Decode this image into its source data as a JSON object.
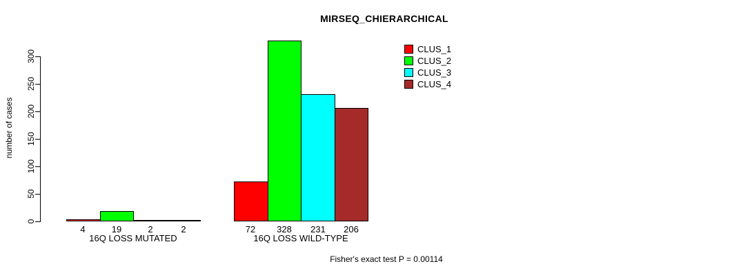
{
  "title": "MIRSEQ_CHIERARCHICAL",
  "y_axis": {
    "label": "number of cases"
  },
  "legend": {
    "items": [
      {
        "label": "CLUS_1",
        "color": "#ff0000"
      },
      {
        "label": "CLUS_2",
        "color": "#00ff00"
      },
      {
        "label": "CLUS_3",
        "color": "#00ffff"
      },
      {
        "label": "CLUS_4",
        "color": "#a52a2a"
      }
    ]
  },
  "footer": "Fisher's exact test P = 0.00114",
  "chart_data": {
    "type": "bar",
    "title": "MIRSEQ_CHIERARCHICAL",
    "xlabel": "",
    "ylabel": "number of cases",
    "ylim": [
      0,
      330
    ],
    "yticks": [
      0,
      50,
      100,
      150,
      200,
      250,
      300
    ],
    "categories": [
      "16Q LOSS MUTATED",
      "16Q LOSS WILD-TYPE"
    ],
    "series": [
      {
        "name": "CLUS_1",
        "color": "#ff0000",
        "values": [
          4,
          72
        ]
      },
      {
        "name": "CLUS_2",
        "color": "#00ff00",
        "values": [
          19,
          328
        ]
      },
      {
        "name": "CLUS_3",
        "color": "#00ffff",
        "values": [
          2,
          231
        ]
      },
      {
        "name": "CLUS_4",
        "color": "#a52a2a",
        "values": [
          2,
          206
        ]
      }
    ],
    "bar_value_labels": [
      [
        4,
        19,
        2,
        2
      ],
      [
        72,
        328,
        231,
        206
      ]
    ],
    "legend_entries": [
      "CLUS_1",
      "CLUS_2",
      "CLUS_3",
      "CLUS_4"
    ],
    "legend_position": "top-right",
    "grid": false,
    "annotation": "Fisher's exact test P = 0.00114"
  }
}
